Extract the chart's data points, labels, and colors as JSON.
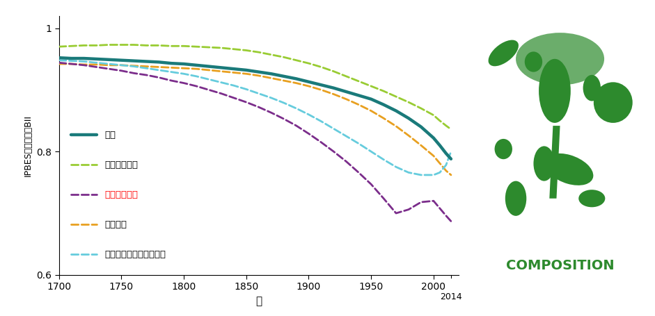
{
  "title": "",
  "xlabel": "年",
  "ylabel": "IPBES地域区分別BII",
  "xlim": [
    1700,
    2020
  ],
  "ylim": [
    0.6,
    1.02
  ],
  "yticks": [
    0.6,
    0.8,
    1.0
  ],
  "xticks": [
    1700,
    1750,
    1800,
    1850,
    1900,
    1950,
    2000
  ],
  "annotation_2014": "2014",
  "background_color": "#ffffff",
  "series": {
    "世界": {
      "color": "#1a7a7a",
      "linewidth": 3.2,
      "linestyle": "solid",
      "x": [
        1700,
        1710,
        1720,
        1730,
        1740,
        1750,
        1760,
        1770,
        1780,
        1790,
        1800,
        1810,
        1820,
        1830,
        1840,
        1850,
        1860,
        1870,
        1880,
        1890,
        1900,
        1910,
        1920,
        1930,
        1940,
        1950,
        1960,
        1970,
        1980,
        1990,
        2000,
        2005,
        2010,
        2014
      ],
      "y": [
        0.952,
        0.951,
        0.951,
        0.95,
        0.949,
        0.948,
        0.947,
        0.946,
        0.945,
        0.943,
        0.942,
        0.94,
        0.938,
        0.936,
        0.934,
        0.932,
        0.929,
        0.926,
        0.922,
        0.918,
        0.913,
        0.908,
        0.903,
        0.897,
        0.891,
        0.885,
        0.876,
        0.866,
        0.854,
        0.84,
        0.822,
        0.81,
        0.797,
        0.788
      ]
    },
    "南北アメリカ": {
      "color": "#99cc33",
      "linewidth": 2.0,
      "linestyle": "dashed",
      "x": [
        1700,
        1710,
        1720,
        1730,
        1740,
        1750,
        1760,
        1770,
        1780,
        1790,
        1800,
        1810,
        1820,
        1830,
        1840,
        1850,
        1860,
        1870,
        1880,
        1890,
        1900,
        1910,
        1920,
        1930,
        1940,
        1950,
        1960,
        1970,
        1980,
        1990,
        2000,
        2005,
        2010,
        2014
      ],
      "y": [
        0.97,
        0.971,
        0.972,
        0.972,
        0.973,
        0.973,
        0.973,
        0.972,
        0.972,
        0.971,
        0.971,
        0.97,
        0.969,
        0.968,
        0.966,
        0.964,
        0.961,
        0.957,
        0.953,
        0.948,
        0.943,
        0.937,
        0.93,
        0.922,
        0.914,
        0.906,
        0.898,
        0.889,
        0.88,
        0.87,
        0.859,
        0.85,
        0.842,
        0.836
      ]
    },
    "アジア太平洋": {
      "color": "#7b2d8b",
      "linewidth": 2.0,
      "linestyle": "dashed",
      "x": [
        1700,
        1710,
        1720,
        1730,
        1740,
        1750,
        1760,
        1770,
        1780,
        1790,
        1800,
        1810,
        1820,
        1830,
        1840,
        1850,
        1860,
        1870,
        1880,
        1890,
        1900,
        1910,
        1920,
        1930,
        1940,
        1950,
        1960,
        1970,
        1980,
        1990,
        2000,
        2005,
        2010,
        2014
      ],
      "y": [
        0.944,
        0.942,
        0.94,
        0.937,
        0.934,
        0.931,
        0.927,
        0.924,
        0.92,
        0.915,
        0.911,
        0.906,
        0.9,
        0.894,
        0.887,
        0.88,
        0.872,
        0.863,
        0.853,
        0.842,
        0.829,
        0.815,
        0.8,
        0.784,
        0.766,
        0.747,
        0.724,
        0.7,
        0.706,
        0.718,
        0.72,
        0.708,
        0.696,
        0.687
      ]
    },
    "アフリカ": {
      "color": "#e8a020",
      "linewidth": 2.0,
      "linestyle": "dashed",
      "x": [
        1700,
        1710,
        1720,
        1730,
        1740,
        1750,
        1760,
        1770,
        1780,
        1790,
        1800,
        1810,
        1820,
        1830,
        1840,
        1850,
        1860,
        1870,
        1880,
        1890,
        1900,
        1910,
        1920,
        1930,
        1940,
        1950,
        1960,
        1970,
        1980,
        1990,
        2000,
        2005,
        2010,
        2014
      ],
      "y": [
        0.942,
        0.942,
        0.941,
        0.941,
        0.94,
        0.94,
        0.939,
        0.938,
        0.937,
        0.936,
        0.935,
        0.934,
        0.932,
        0.93,
        0.928,
        0.926,
        0.923,
        0.919,
        0.915,
        0.911,
        0.906,
        0.9,
        0.893,
        0.885,
        0.876,
        0.866,
        0.854,
        0.841,
        0.826,
        0.81,
        0.793,
        0.781,
        0.769,
        0.762
      ]
    },
    "ヨーロッパ・中央アジア": {
      "color": "#66ccdd",
      "linewidth": 2.0,
      "linestyle": "dashed",
      "x": [
        1700,
        1710,
        1720,
        1730,
        1740,
        1750,
        1760,
        1770,
        1780,
        1790,
        1800,
        1810,
        1820,
        1830,
        1840,
        1850,
        1860,
        1870,
        1880,
        1890,
        1900,
        1910,
        1920,
        1930,
        1940,
        1950,
        1960,
        1970,
        1980,
        1990,
        2000,
        2005,
        2010,
        2014
      ],
      "y": [
        0.948,
        0.947,
        0.946,
        0.944,
        0.942,
        0.94,
        0.938,
        0.935,
        0.932,
        0.929,
        0.926,
        0.922,
        0.917,
        0.912,
        0.907,
        0.901,
        0.894,
        0.887,
        0.879,
        0.87,
        0.86,
        0.849,
        0.837,
        0.825,
        0.813,
        0.8,
        0.787,
        0.775,
        0.766,
        0.762,
        0.762,
        0.766,
        0.778,
        0.8
      ]
    }
  },
  "legend_items": [
    {
      "label": "世界",
      "color": "#1a7a7a",
      "linestyle": "solid",
      "bold": false,
      "red": false,
      "lw": 3.2
    },
    {
      "label": "南北アメリカ",
      "color": "#99cc33",
      "linestyle": "dashed",
      "bold": false,
      "red": false,
      "lw": 2.0
    },
    {
      "label": "アジア太平洋",
      "color": "#7b2d8b",
      "linestyle": "dashed",
      "bold": true,
      "red": true,
      "lw": 2.0
    },
    {
      "label": "アフリカ",
      "color": "#e8a020",
      "linestyle": "dashed",
      "bold": false,
      "red": false,
      "lw": 2.0
    },
    {
      "label": "ヨーロッパ・中央アジア",
      "color": "#66ccdd",
      "linestyle": "dashed",
      "bold": false,
      "red": false,
      "lw": 2.0
    }
  ],
  "composition_color": "#2d8a2d",
  "composition_text": "COMPOSITION"
}
